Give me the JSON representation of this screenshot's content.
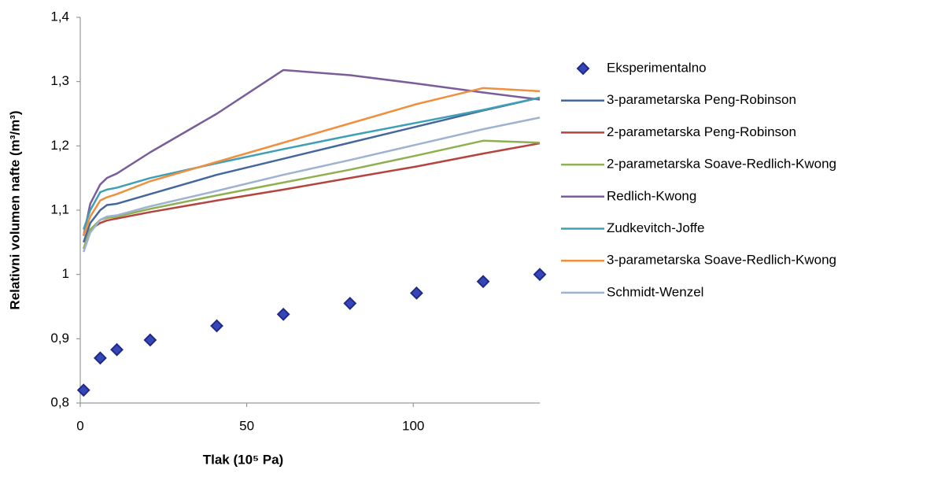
{
  "chart_data": {
    "type": "line",
    "xlabel": "Tlak (10⁵ Pa)",
    "ylabel": "Relativni volumen nafte (m³/m³)",
    "xlim": [
      0,
      138
    ],
    "xticks": [
      0,
      50,
      100
    ],
    "ylim": [
      0.8,
      1.4
    ],
    "yticks": [
      {
        "value": 0.8,
        "label": "0,8"
      },
      {
        "value": 0.9,
        "label": "0,9"
      },
      1,
      {
        "value": 1.1,
        "label": "1,1"
      },
      {
        "value": 1.2,
        "label": "1,2"
      },
      {
        "value": 1.3,
        "label": "1,3"
      },
      {
        "value": 1.4,
        "label": "1,4"
      }
    ],
    "legend": "right",
    "series": [
      {
        "name": "Eksperimentalno",
        "type": "scatter",
        "color": "#1f2a8a",
        "x": [
          1,
          6,
          11,
          21,
          41,
          61,
          81,
          101,
          121,
          138
        ],
        "values": [
          0.82,
          0.87,
          0.883,
          0.898,
          0.92,
          0.938,
          0.955,
          0.971,
          0.989,
          1.0
        ]
      },
      {
        "name": "3-parametarska Peng-Robinson",
        "type": "line",
        "color": "#44689c",
        "x": [
          1,
          3,
          6,
          8,
          11,
          21,
          41,
          61,
          81,
          101,
          121,
          138
        ],
        "values": [
          1.05,
          1.08,
          1.1,
          1.108,
          1.11,
          1.125,
          1.155,
          1.18,
          1.205,
          1.23,
          1.255,
          1.275
        ]
      },
      {
        "name": "2-parametarska Peng-Robinson",
        "type": "line",
        "color": "#b5443f",
        "x": [
          1,
          3,
          6,
          8,
          11,
          21,
          41,
          61,
          81,
          101,
          121,
          138
        ],
        "values": [
          1.04,
          1.07,
          1.08,
          1.084,
          1.087,
          1.097,
          1.115,
          1.132,
          1.15,
          1.168,
          1.188,
          1.204
        ]
      },
      {
        "name": "2-parametarska Soave-Redlich-Kwong",
        "type": "line",
        "color": "#8fb04f",
        "x": [
          1,
          3,
          6,
          8,
          11,
          21,
          41,
          61,
          81,
          101,
          121,
          138
        ],
        "values": [
          1.04,
          1.07,
          1.085,
          1.088,
          1.09,
          1.102,
          1.123,
          1.143,
          1.163,
          1.185,
          1.208,
          1.205
        ]
      },
      {
        "name": "Redlich-Kwong",
        "type": "line",
        "color": "#7a5d99",
        "x": [
          1,
          3,
          6,
          8,
          11,
          21,
          41,
          61,
          81,
          101,
          121,
          138
        ],
        "values": [
          1.06,
          1.11,
          1.14,
          1.15,
          1.157,
          1.19,
          1.25,
          1.318,
          1.31,
          1.297,
          1.283,
          1.272
        ]
      },
      {
        "name": "Zudkevitch-Joffe",
        "type": "line",
        "color": "#3fa0b5",
        "x": [
          1,
          3,
          6,
          8,
          11,
          21,
          41,
          61,
          81,
          101,
          121,
          138
        ],
        "values": [
          1.07,
          1.1,
          1.128,
          1.132,
          1.135,
          1.15,
          1.173,
          1.195,
          1.216,
          1.236,
          1.256,
          1.275
        ]
      },
      {
        "name": "3-parametarska Soave-Redlich-Kwong",
        "type": "line",
        "color": "#ee9040",
        "x": [
          1,
          3,
          6,
          8,
          11,
          21,
          41,
          61,
          81,
          101,
          121,
          138
        ],
        "values": [
          1.06,
          1.09,
          1.115,
          1.12,
          1.125,
          1.145,
          1.175,
          1.205,
          1.235,
          1.265,
          1.29,
          1.285
        ]
      },
      {
        "name": "Schmidt-Wenzel",
        "type": "line",
        "color": "#9eb2d2",
        "x": [
          1,
          3,
          6,
          8,
          11,
          21,
          41,
          61,
          81,
          101,
          121,
          138
        ],
        "values": [
          1.035,
          1.065,
          1.085,
          1.09,
          1.092,
          1.106,
          1.13,
          1.155,
          1.178,
          1.202,
          1.226,
          1.244
        ]
      }
    ]
  }
}
